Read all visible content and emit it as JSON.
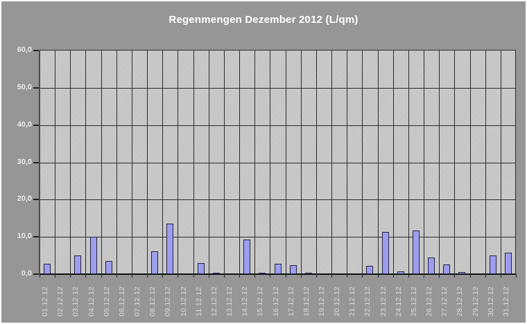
{
  "window": {
    "background": "#969696",
    "frame_border": "#ffffff"
  },
  "colors": {
    "background": "#969696",
    "plot_background": "#c9c9c9",
    "bar_fill": "#9a9aee",
    "bar_border": "#23233c",
    "gridline": "#2b2b2b",
    "title_text": "#ffffff",
    "y_label_text": "#f5f5f5",
    "x_label_text": "#dcdcdc"
  },
  "chart_data": {
    "type": "bar",
    "title": "Regenmengen Dezember 2012 (L/qm)",
    "xlabel": "",
    "ylabel": "",
    "ylim": [
      0,
      60
    ],
    "ytick_step": 10,
    "ytick_labels": [
      "0,0",
      "10,0",
      "20,0",
      "30,0",
      "40,0",
      "50,0",
      "60,0"
    ],
    "grid": true,
    "legend": "none",
    "categories": [
      "01.12.12",
      "02.12.12",
      "03.12.12",
      "04.12.12",
      "05.12.12",
      "06.12.12",
      "07.12.12",
      "08.12.12",
      "09.12.12",
      "10.12.12",
      "11.12.12",
      "12.12.12",
      "13.12.12",
      "14.12.12",
      "15.12.12",
      "16.12.12",
      "17.12.12",
      "18.12.12",
      "19.12.12",
      "20.12.12",
      "21.12.12",
      "22.12.12",
      "23.12.12",
      "24.12.12",
      "25.12.12",
      "26.12.12",
      "27.12.12",
      "28.12.12",
      "29.12.12",
      "30.12.12",
      "31.12.12"
    ],
    "values": [
      2.8,
      0,
      5.0,
      10.0,
      3.6,
      0,
      0,
      6.1,
      13.5,
      0,
      2.9,
      0.2,
      0,
      9.3,
      0.3,
      2.7,
      2.4,
      0.2,
      0,
      0,
      0,
      2.3,
      11.4,
      0.8,
      11.7,
      4.4,
      2.6,
      0.5,
      0,
      5.1,
      5.8
    ]
  }
}
